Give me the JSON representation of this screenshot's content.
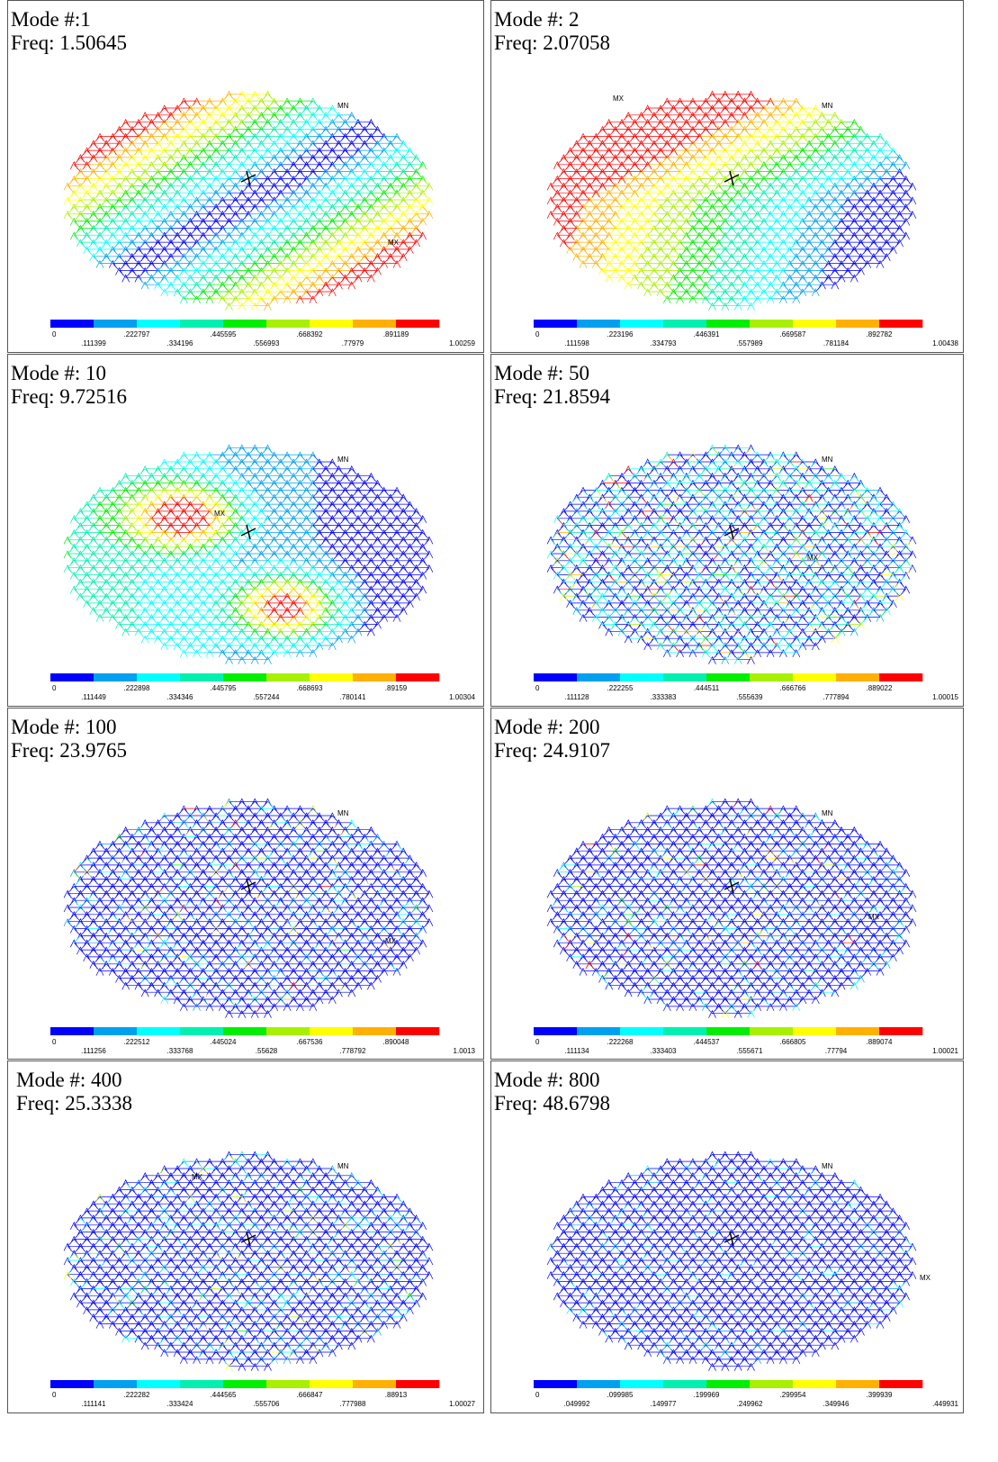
{
  "panels": [
    {
      "mode": "Mode #:1",
      "freq": "Freq: 1.50645",
      "mn": "MN",
      "mx": "MX",
      "legend": [
        "0",
        ".111399",
        ".222797",
        ".334196",
        ".445595",
        ".556993",
        ".668392",
        ".77979",
        ".891189",
        "1.00259"
      ]
    },
    {
      "mode": "Mode #: 2",
      "freq": "Freq: 2.07058",
      "mn": "MN",
      "mx": "MX",
      "legend": [
        "0",
        ".111598",
        ".223196",
        ".334793",
        ".446391",
        ".557989",
        ".669587",
        ".781184",
        ".892782",
        "1.00438"
      ]
    },
    {
      "mode": "Mode #: 10",
      "freq": "Freq: 9.72516",
      "mn": "MN",
      "mx": "MX",
      "legend": [
        "0",
        ".111449",
        ".222898",
        ".334346",
        ".445795",
        ".557244",
        ".668693",
        ".780141",
        ".89159",
        "1.00304"
      ]
    },
    {
      "mode": "Mode #: 50",
      "freq": "Freq: 21.8594",
      "mn": "MN",
      "mx": "MX",
      "legend": [
        "0",
        ".111128",
        ".222255",
        ".333383",
        ".444511",
        ".555639",
        ".666766",
        ".777894",
        ".889022",
        "1.00015"
      ]
    },
    {
      "mode": "Mode #: 100",
      "freq": "Freq: 23.9765",
      "mn": "MN",
      "mx": "MX",
      "legend": [
        "0",
        ".111256",
        ".222512",
        ".333768",
        ".445024",
        ".55628",
        ".667536",
        ".778792",
        ".890048",
        "1.0013"
      ]
    },
    {
      "mode": "Mode #: 200",
      "freq": "Freq: 24.9107",
      "mn": "MN",
      "mx": "MX",
      "legend": [
        "0",
        ".111134",
        ".222268",
        ".333403",
        ".444537",
        ".555671",
        ".666805",
        ".77794",
        ".889074",
        "1.00021"
      ]
    },
    {
      "mode": "Mode #: 400",
      "freq": "Freq: 25.3338",
      "mn": "MN",
      "mx": "MX",
      "legend": [
        "0",
        ".111141",
        ".222282",
        ".333424",
        ".444565",
        ".555706",
        ".666847",
        ".777988",
        ".88913",
        "1.00027"
      ]
    },
    {
      "mode": "Mode #: 800",
      "freq": "Freq: 48.6798",
      "mn": "MN",
      "mx": "MX",
      "legend": [
        "0",
        ".049992",
        ".099985",
        ".149977",
        ".199969",
        ".249962",
        ".299954",
        ".349946",
        ".399939",
        ".449931"
      ]
    }
  ]
}
